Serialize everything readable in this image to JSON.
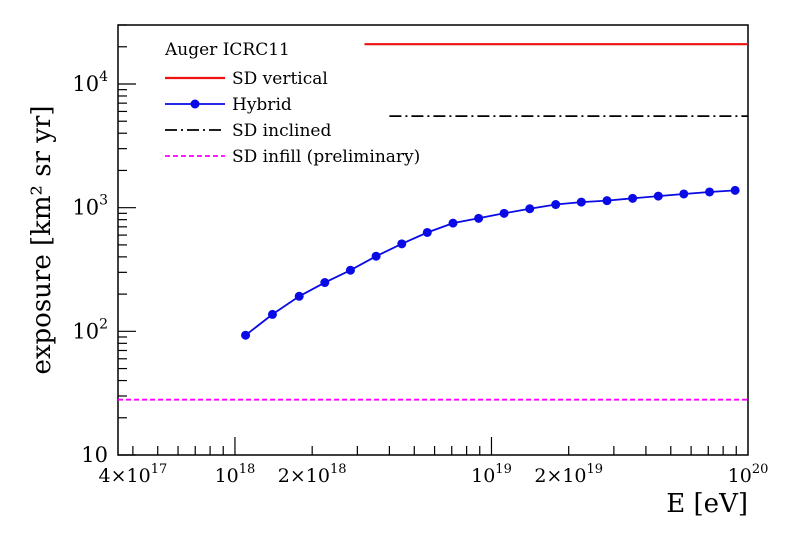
{
  "chart_data": {
    "type": "line",
    "title": "",
    "legend_title": "Auger ICRC11",
    "legend_position": "top-left",
    "xlabel": "E [eV]",
    "ylabel": "exposure [km² sr yr]",
    "x_scale": "log",
    "y_scale": "log",
    "xlim": [
      3.5e+17,
      1e+20
    ],
    "ylim": [
      10,
      30000
    ],
    "x_tick_labels": [
      {
        "value": 4e+17,
        "mantissa": "4×10",
        "exp": "17"
      },
      {
        "value": 1e+18,
        "mantissa": "10",
        "exp": "18"
      },
      {
        "value": 2e+18,
        "mantissa": "2×10",
        "exp": "18"
      },
      {
        "value": 1e+19,
        "mantissa": "10",
        "exp": "19"
      },
      {
        "value": 2e+19,
        "mantissa": "2×10",
        "exp": "19"
      },
      {
        "value": 1e+20,
        "mantissa": "10",
        "exp": "20"
      }
    ],
    "y_tick_labels": [
      {
        "value": 10,
        "mantissa": "10",
        "exp": ""
      },
      {
        "value": 100,
        "mantissa": "10",
        "exp": "2"
      },
      {
        "value": 1000,
        "mantissa": "10",
        "exp": "3"
      },
      {
        "value": 10000,
        "mantissa": "10",
        "exp": "4"
      }
    ],
    "series": [
      {
        "name": "SD vertical",
        "style": "solid",
        "color": "#ee1111",
        "x": [
          3.2e+18,
          1e+20
        ],
        "y": [
          21000,
          21000
        ]
      },
      {
        "name": "Hybrid",
        "style": "solid-markers",
        "color": "#0a0ae6",
        "x": [
          1.1e+18,
          1.4e+18,
          1.78e+18,
          2.24e+18,
          2.82e+18,
          3.55e+18,
          4.47e+18,
          5.62e+18,
          7.08e+18,
          8.91e+18,
          1.12e+19,
          1.41e+19,
          1.78e+19,
          2.24e+19,
          2.82e+19,
          3.55e+19,
          4.47e+19,
          5.62e+19,
          7.08e+19,
          8.91e+19
        ],
        "y": [
          93,
          137,
          192,
          248,
          312,
          405,
          510,
          630,
          750,
          820,
          900,
          980,
          1060,
          1110,
          1140,
          1190,
          1240,
          1290,
          1340,
          1380
        ]
      },
      {
        "name": "SD inclined",
        "style": "dash-dot",
        "color": "#000000",
        "x": [
          4e+18,
          1e+20
        ],
        "y": [
          5500,
          5500
        ]
      },
      {
        "name": "SD infill (preliminary)",
        "style": "dashed",
        "color": "#ff00ff",
        "x": [
          3.5e+17,
          1e+20
        ],
        "y": [
          28,
          28
        ]
      }
    ]
  }
}
